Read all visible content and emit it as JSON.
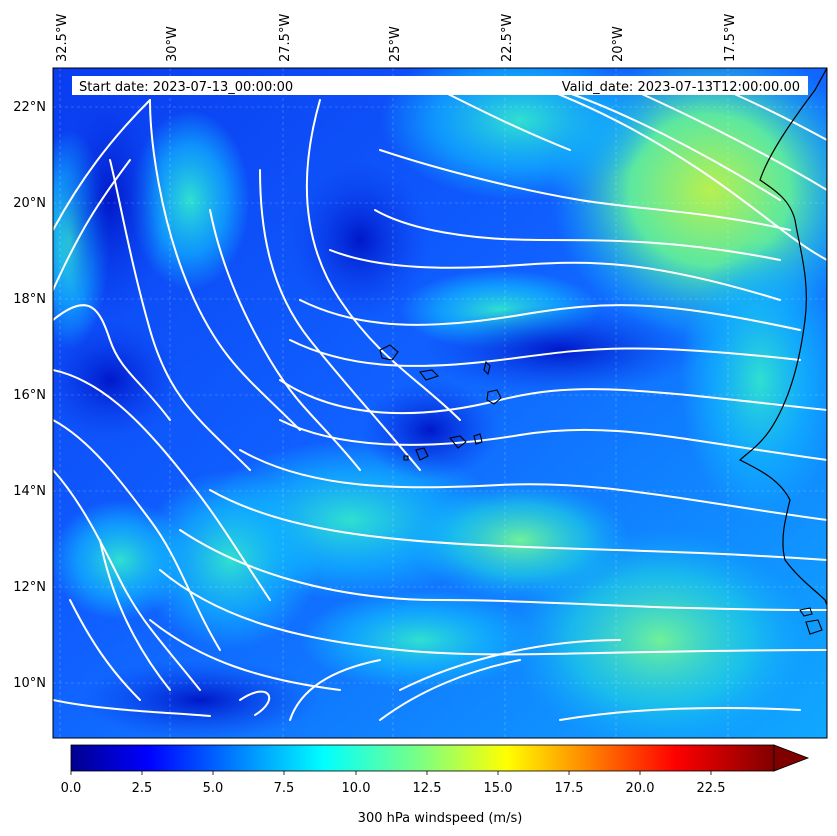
{
  "map": {
    "start_date_text": "Start date: 2023-07-13_00:00:00",
    "valid_date_text": "Valid_date: 2023-07-13T12:00:00.00",
    "lon_labels": [
      "32.5°W",
      "30°W",
      "27.5°W",
      "25°W",
      "22.5°W",
      "20°W",
      "17.5°W"
    ],
    "lat_labels": [
      "22°N",
      "20°N",
      "18°N",
      "16°N",
      "14°N",
      "12°N",
      "10°N"
    ],
    "colors": {
      "field_low": "#0a3cf0",
      "field_mid": "#10b4ff",
      "field_high": "#9cf06a",
      "streamline": "#ffffff",
      "coastline": "#000000"
    },
    "field": "300 hPa windspeed (m/s)"
  },
  "colorbar": {
    "label": "300 hPa windspeed (m/s)",
    "ticks": [
      "0.0",
      "2.5",
      "5.0",
      "7.5",
      "10.0",
      "12.5",
      "15.0",
      "17.5",
      "20.0",
      "22.5"
    ],
    "min": 0,
    "max": 25,
    "extend": "max",
    "colormap": "jet"
  }
}
